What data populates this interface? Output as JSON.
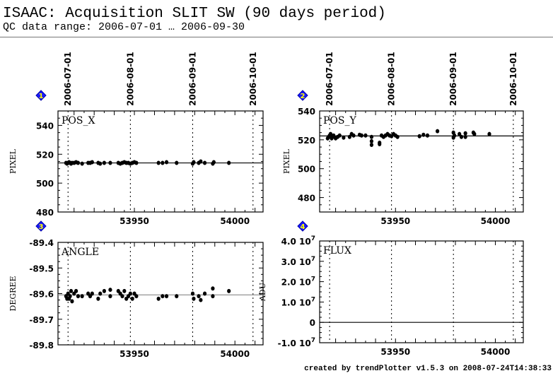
{
  "header": {
    "title": "ISAAC: Acquisition SLIT SW (90 days period)",
    "subtitle": "QC data range: 2006-07-01 … 2006-09-30"
  },
  "footer": "created by trendPlotter v1.5.3 on 2008-07-24T14:38:33",
  "colors": {
    "badge_fill": "#1a1aff",
    "badge_text": "#ffff00",
    "points": "#000000",
    "mean_line": "#000000",
    "angle_mean_line": "#888888"
  },
  "chart_data": [
    {
      "type": "scatter",
      "badge": "1",
      "label": "POS_X",
      "ylabel": "PIXEL",
      "xlim": [
        53912,
        54014
      ],
      "ylim": [
        480,
        550
      ],
      "xticks": [
        "53950",
        "54000"
      ],
      "yticks": [
        "480",
        "500",
        "520",
        "540"
      ],
      "date_markers": [
        {
          "label": "2006-07-01",
          "mjd": 53917
        },
        {
          "label": "2006-08-01",
          "mjd": 53948
        },
        {
          "label": "2006-09-01",
          "mjd": 53979
        },
        {
          "label": "2006-10-01",
          "mjd": 54009
        }
      ],
      "mean": 514,
      "x": [
        53916,
        53916.5,
        53917,
        53917.5,
        53918,
        53918.5,
        53919,
        53920,
        53921,
        53922,
        53924,
        53927,
        53928,
        53929,
        53932,
        53933,
        53935,
        53938,
        53942,
        53943,
        53944,
        53945,
        53946,
        53947,
        53948,
        53949,
        53950,
        53951,
        53962,
        53964,
        53966,
        53971,
        53979,
        53979.5,
        53982,
        53983,
        53985,
        53989,
        53989.5,
        53997
      ],
      "y": [
        514,
        513.5,
        514,
        514.5,
        514,
        513.5,
        514,
        514,
        514.5,
        514,
        513.5,
        514,
        514,
        514.5,
        514,
        513.5,
        514,
        514,
        514,
        513.5,
        514,
        514.5,
        514,
        514,
        513.5,
        514,
        514.5,
        514,
        514,
        514,
        514.5,
        514,
        513.5,
        514.5,
        514,
        515,
        514,
        513.5,
        514.5,
        514
      ]
    },
    {
      "type": "scatter",
      "badge": "2",
      "label": "POS_Y",
      "ylabel": "PIXEL",
      "xlim": [
        53912,
        54014
      ],
      "ylim": [
        470,
        540
      ],
      "xticks": [
        "53950",
        "54000"
      ],
      "yticks": [
        "480",
        "500",
        "520",
        "540"
      ],
      "date_markers": [
        {
          "label": "2006-07-01",
          "mjd": 53917
        },
        {
          "label": "2006-08-01",
          "mjd": 53948
        },
        {
          "label": "2006-09-01",
          "mjd": 53979
        },
        {
          "label": "2006-10-01",
          "mjd": 54009
        }
      ],
      "mean": 522.7,
      "x": [
        53916,
        53916.5,
        53917,
        53917.5,
        53918,
        53918.5,
        53919,
        53920,
        53921,
        53922,
        53924,
        53927,
        53928,
        53929,
        53932,
        53933,
        53935,
        53938,
        53938,
        53938,
        53942,
        53942,
        53943,
        53944,
        53945,
        53946,
        53947,
        53948,
        53949,
        53950,
        53951,
        53962,
        53964,
        53966,
        53971,
        53979,
        53979,
        53979.5,
        53982,
        53983,
        53985,
        53985,
        53989,
        53989.5,
        53997
      ],
      "y": [
        521,
        522,
        523,
        524,
        521,
        522,
        523,
        521,
        522,
        523,
        521.5,
        522,
        524,
        523,
        523.5,
        523,
        523,
        522,
        519,
        516.5,
        518,
        517,
        523,
        522,
        523,
        524,
        523,
        522.5,
        524,
        523,
        522,
        522.5,
        523.5,
        523,
        526,
        525,
        521.5,
        523,
        524,
        522,
        524.5,
        522,
        525,
        524,
        524
      ]
    },
    {
      "type": "scatter",
      "badge": "3",
      "label": "ANGLE",
      "ylabel": "DEGREE",
      "xlim": [
        53912,
        54014
      ],
      "ylim": [
        -89.8,
        -89.4
      ],
      "xticks": [
        "53950",
        "54000"
      ],
      "yticks": [
        "-89.8",
        "-89.7",
        "-89.6",
        "-89.5",
        "-89.4"
      ],
      "date_markers": [
        {
          "label": "2006-07-01",
          "mjd": 53917
        },
        {
          "label": "2006-08-01",
          "mjd": 53948
        },
        {
          "label": "2006-09-01",
          "mjd": 53979
        },
        {
          "label": "2006-10-01",
          "mjd": 54009
        }
      ],
      "mean": -89.605,
      "x": [
        53916,
        53916.5,
        53917,
        53917.5,
        53918,
        53918.5,
        53919,
        53920,
        53921,
        53922,
        53924,
        53927,
        53928,
        53929,
        53932,
        53933,
        53935,
        53938,
        53938,
        53942,
        53943,
        53944,
        53945,
        53946,
        53947,
        53948,
        53949,
        53950,
        53951,
        53962,
        53964,
        53966,
        53971,
        53979,
        53979.5,
        53982,
        53983,
        53985,
        53989,
        53989,
        53997
      ],
      "y": [
        -89.61,
        -89.62,
        -89.6,
        -89.62,
        -89.61,
        -89.59,
        -89.63,
        -89.6,
        -89.59,
        -89.61,
        -89.61,
        -89.6,
        -89.61,
        -89.6,
        -89.62,
        -89.6,
        -89.59,
        -89.61,
        -89.585,
        -89.59,
        -89.6,
        -89.61,
        -89.59,
        -89.62,
        -89.61,
        -89.6,
        -89.62,
        -89.6,
        -89.61,
        -89.62,
        -89.61,
        -89.61,
        -89.61,
        -89.6,
        -89.62,
        -89.61,
        -89.625,
        -89.6,
        -89.58,
        -89.61,
        -89.59
      ]
    },
    {
      "type": "scatter",
      "badge": "4",
      "label": "FLUX",
      "ylabel": "ADU",
      "xlim": [
        53912,
        54014
      ],
      "ylim": [
        -10000000,
        40000000
      ],
      "xticks": [
        "53950",
        "54000"
      ],
      "yticks": [
        "-1.0 10^7",
        "0",
        "1.0 10^7",
        "2.0 10^7",
        "3.0 10^7",
        "4.0 10^7"
      ],
      "date_markers": [
        {
          "label": "2006-07-01",
          "mjd": 53917
        },
        {
          "label": "2006-08-01",
          "mjd": 53948
        },
        {
          "label": "2006-09-01",
          "mjd": 53979
        },
        {
          "label": "2006-10-01",
          "mjd": 54009
        }
      ],
      "mean": 0,
      "x": [],
      "y": []
    }
  ]
}
